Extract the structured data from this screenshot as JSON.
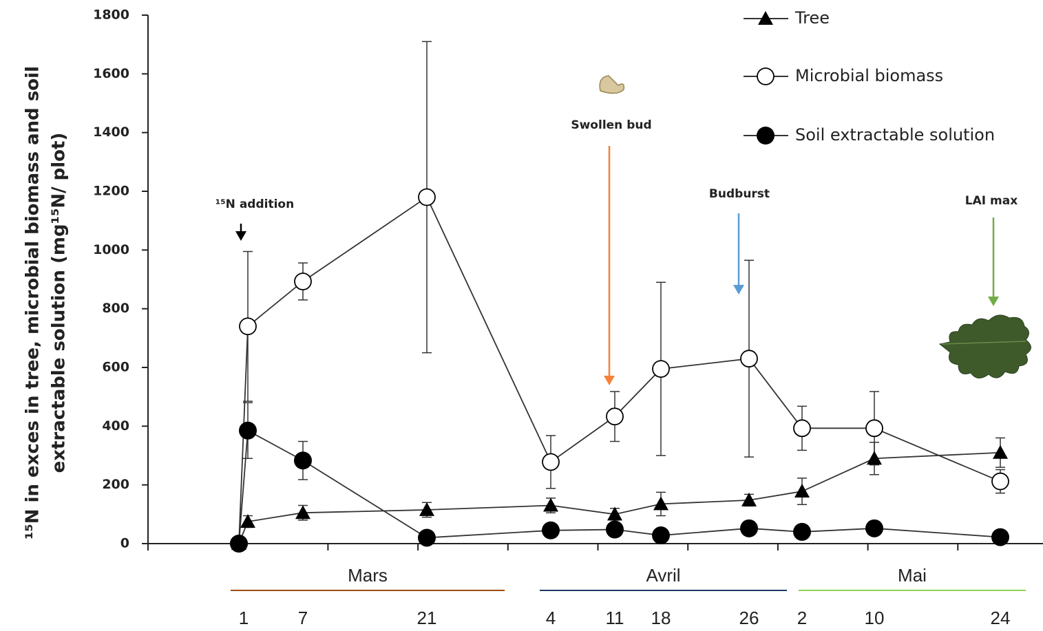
{
  "chart_data": {
    "type": "line",
    "y_label": [
      "¹⁵N in exces in tree, microbial biomass and soil",
      "extractable solution (mg¹⁵N/ plot)"
    ],
    "categories": [
      "1",
      null,
      "7",
      "21",
      "4",
      "11",
      "18",
      "26",
      "2",
      "10",
      "24"
    ],
    "months": [
      {
        "label": "Mars",
        "color": "#9c4a0f"
      },
      {
        "label": "Avril",
        "color": "#1f3864"
      },
      {
        "label": "Mai",
        "color": "#92d050"
      }
    ],
    "series": [
      {
        "name": "Tree",
        "marker": "triangle",
        "color": "#000000",
        "values": [
          0,
          75,
          105,
          115,
          130,
          100,
          135,
          148,
          178,
          290,
          310
        ],
        "errors": [
          null,
          20,
          25,
          25,
          25,
          20,
          40,
          20,
          45,
          55,
          50
        ]
      },
      {
        "name": "Microbial biomass",
        "marker": "open-circle",
        "color": "#000000",
        "values": [
          0,
          740,
          893,
          1180,
          278,
          433,
          595,
          630,
          393,
          393,
          212
        ],
        "errors": [
          null,
          255,
          63,
          530,
          90,
          85,
          295,
          335,
          75,
          125,
          40
        ]
      },
      {
        "name": "Soil extractable solution",
        "marker": "circle",
        "color": "#000000",
        "values": [
          0,
          385,
          283,
          20,
          45,
          48,
          28,
          52,
          40,
          52,
          22
        ],
        "errors": [
          null,
          95,
          65,
          null,
          null,
          null,
          null,
          null,
          null,
          null,
          null
        ]
      }
    ],
    "ylim": [
      0,
      1800
    ],
    "yticks": [
      0,
      200,
      400,
      600,
      800,
      1000,
      1200,
      1400,
      1600,
      1800
    ],
    "annotations": [
      {
        "text": "¹⁵N addition",
        "color": "#000000"
      },
      {
        "text": "Swollen bud",
        "color": "#f4823a"
      },
      {
        "text": "Budburst",
        "color": "#5b9bd5"
      },
      {
        "text": "LAI max",
        "color": "#70ad47"
      }
    ]
  }
}
